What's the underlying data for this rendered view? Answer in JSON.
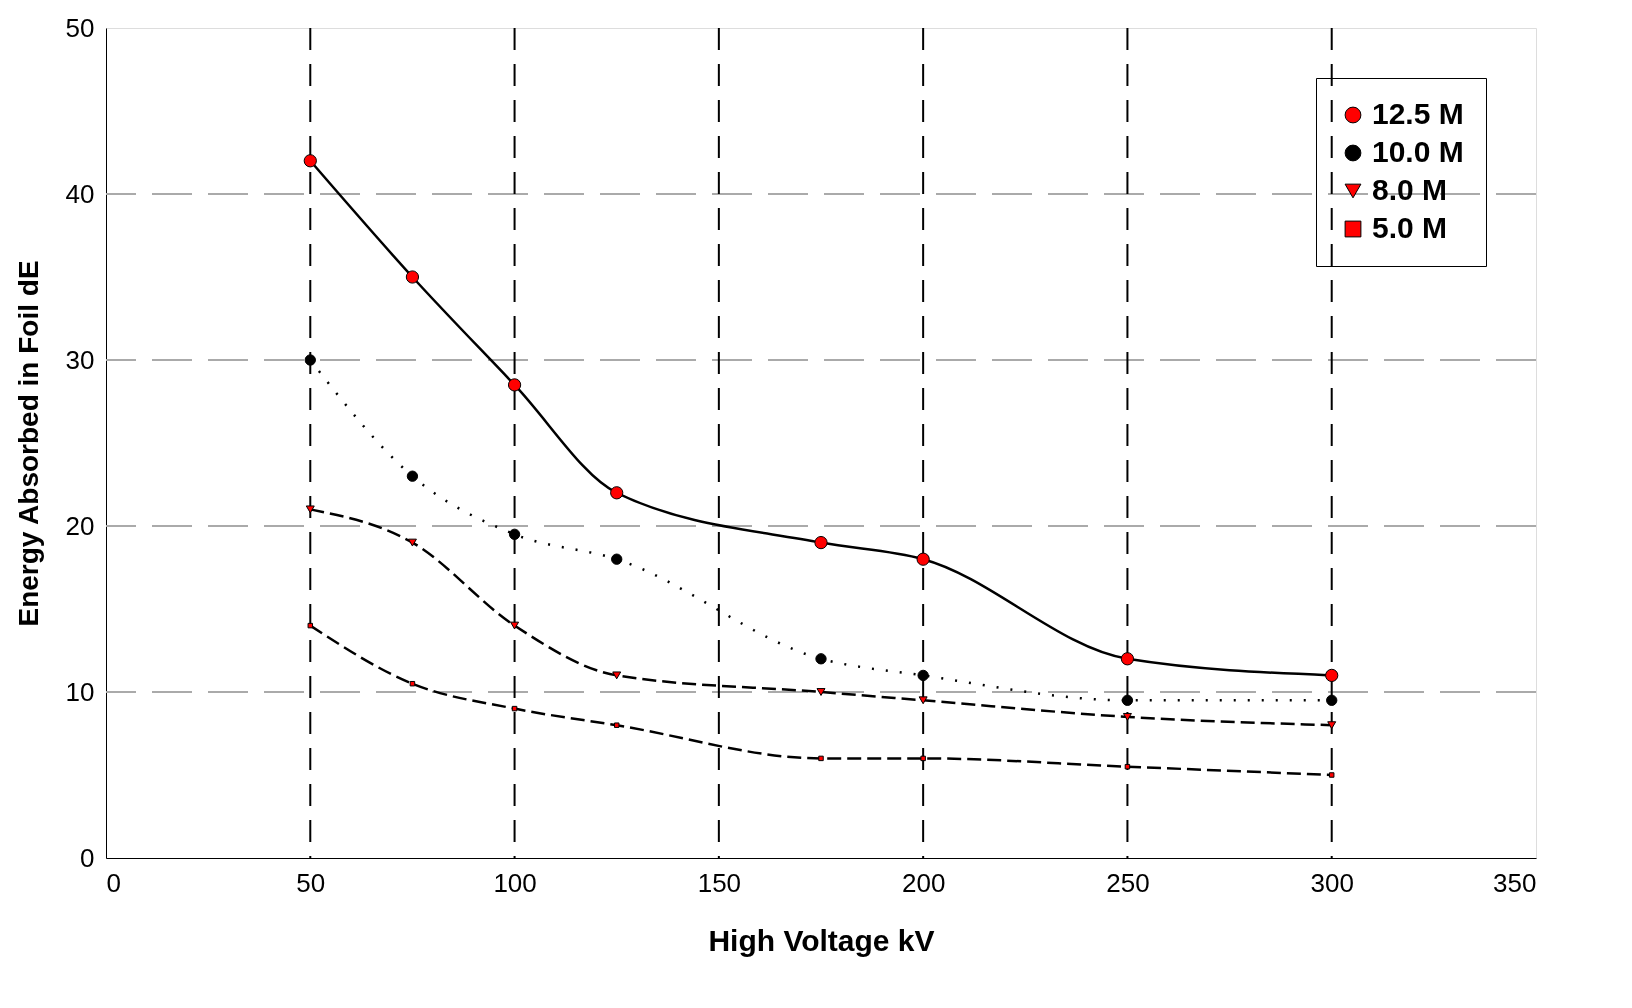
{
  "chart_data": {
    "type": "line",
    "xlabel": "High Voltage kV",
    "ylabel": "Energy Absorbed in Foil dE",
    "x": [
      50,
      75,
      100,
      125,
      175,
      200,
      250,
      300
    ],
    "series": [
      {
        "name": "12.5 M",
        "color": "#ff0000",
        "marker": "circle",
        "line_style": "solid",
        "values": [
          42,
          35,
          28.5,
          22,
          19,
          18,
          12,
          11
        ]
      },
      {
        "name": "10.0 M",
        "color": "#000000",
        "marker": "circle",
        "line_style": "dotted",
        "values": [
          30,
          23,
          19.5,
          18,
          12,
          11,
          9.5,
          9.5
        ]
      },
      {
        "name": "8.0 M",
        "color": "#ff0000",
        "marker": "triangle",
        "line_style": "dashed",
        "values": [
          21,
          19,
          14,
          11,
          10,
          9.5,
          8.5,
          8
        ]
      },
      {
        "name": "5.0 M",
        "color": "#ff0000",
        "marker": "square",
        "line_style": "dashed",
        "values": [
          14,
          10.5,
          9,
          8,
          6,
          6,
          5.5,
          5
        ]
      }
    ],
    "xlim": [
      0,
      350
    ],
    "xticks": [
      0,
      50,
      100,
      150,
      200,
      250,
      300,
      350
    ],
    "ylim": [
      0,
      50
    ],
    "yticks": [
      0,
      10,
      20,
      30,
      40,
      50
    ],
    "grid": true,
    "legend": "top right"
  }
}
